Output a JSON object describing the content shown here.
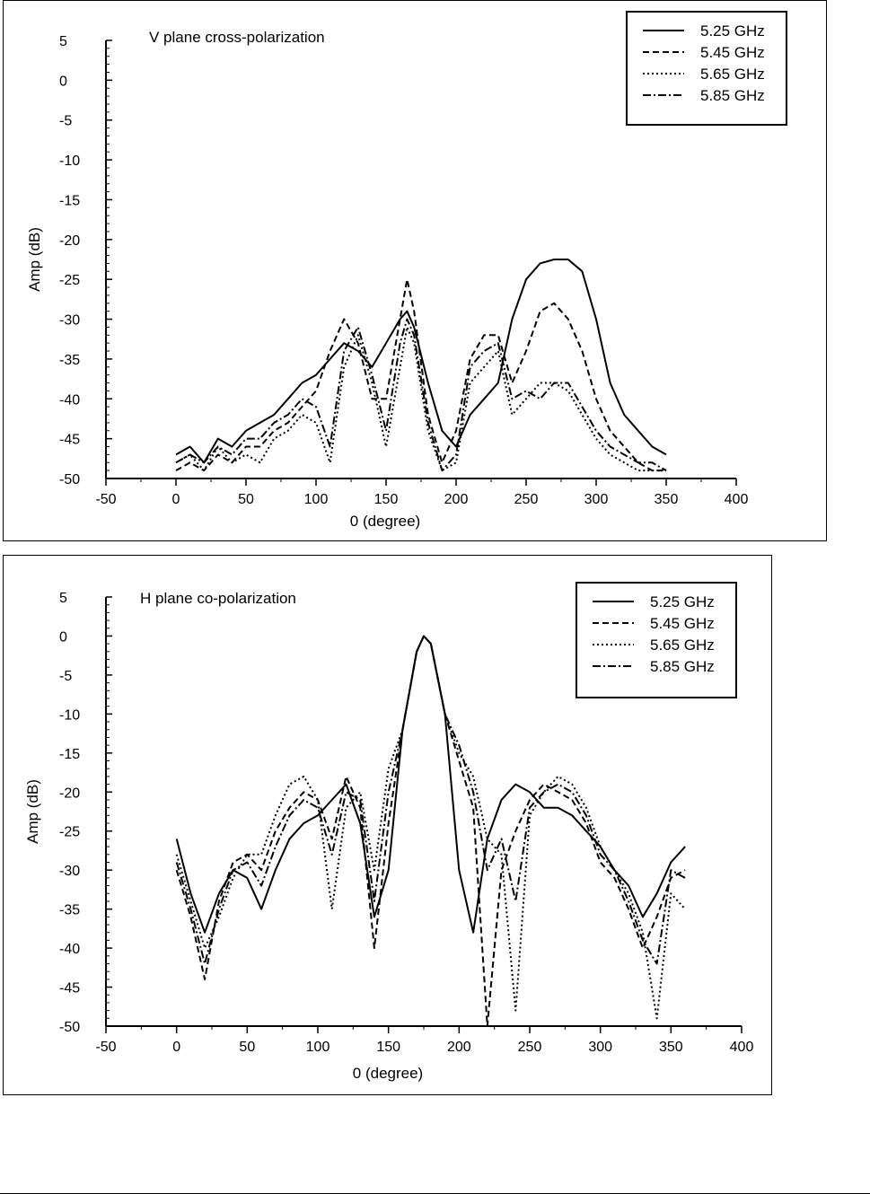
{
  "chart_data": [
    {
      "type": "line",
      "title": "V plane cross-polarization",
      "xlabel": "0 (degree)",
      "ylabel": "Amp (dB)",
      "xlim": [
        -50,
        400
      ],
      "ylim": [
        -50,
        5
      ],
      "xticks": [
        -50,
        0,
        50,
        100,
        150,
        200,
        250,
        300,
        350,
        400
      ],
      "yticks": [
        5,
        0,
        -5,
        -10,
        -15,
        -20,
        -25,
        -30,
        -35,
        -40,
        -45,
        -50
      ],
      "legend": "top-right",
      "grid": false,
      "series": [
        {
          "name": "5.25 GHz",
          "dash": "solid",
          "x": [
            0,
            10,
            20,
            30,
            40,
            50,
            60,
            70,
            80,
            90,
            100,
            110,
            120,
            130,
            140,
            150,
            160,
            165,
            170,
            180,
            190,
            200,
            210,
            220,
            230,
            240,
            250,
            260,
            270,
            280,
            290,
            300,
            310,
            320,
            330,
            340,
            350
          ],
          "y": [
            -47,
            -46,
            -48,
            -45,
            -46,
            -44,
            -43,
            -42,
            -40,
            -38,
            -37,
            -35,
            -33,
            -34,
            -36,
            -33,
            -30,
            -29,
            -31,
            -38,
            -44,
            -46,
            -42,
            -40,
            -38,
            -30,
            -25,
            -23,
            -22.5,
            -22.5,
            -24,
            -30,
            -38,
            -42,
            -44,
            -46,
            -47
          ]
        },
        {
          "name": "5.45 GHz",
          "dash": "dashed",
          "x": [
            0,
            10,
            20,
            30,
            40,
            50,
            60,
            70,
            80,
            90,
            100,
            110,
            120,
            130,
            140,
            150,
            160,
            165,
            170,
            180,
            190,
            200,
            210,
            220,
            230,
            240,
            250,
            260,
            270,
            280,
            290,
            300,
            310,
            320,
            330,
            340,
            350
          ],
          "y": [
            -49,
            -48,
            -49,
            -47,
            -48,
            -46,
            -46,
            -44,
            -43,
            -41,
            -39,
            -34,
            -30,
            -33,
            -40,
            -40,
            -30,
            -25,
            -29,
            -42,
            -48,
            -44,
            -35,
            -32,
            -32,
            -38,
            -34,
            -29,
            -28,
            -30,
            -34,
            -40,
            -44,
            -46,
            -48,
            -49,
            -49
          ]
        },
        {
          "name": "5.65 GHz",
          "dash": "dotted",
          "x": [
            0,
            10,
            20,
            30,
            40,
            50,
            60,
            70,
            80,
            90,
            100,
            110,
            120,
            130,
            140,
            150,
            160,
            165,
            170,
            180,
            190,
            200,
            210,
            220,
            230,
            240,
            250,
            260,
            270,
            280,
            290,
            300,
            310,
            320,
            330,
            340,
            350
          ],
          "y": [
            -48,
            -47,
            -49,
            -46,
            -48,
            -47,
            -48,
            -45,
            -44,
            -42,
            -43,
            -48,
            -36,
            -32,
            -38,
            -46,
            -36,
            -31,
            -33,
            -44,
            -49,
            -48,
            -38,
            -36,
            -34,
            -42,
            -40,
            -38,
            -38,
            -39,
            -42,
            -45,
            -47,
            -48,
            -49,
            -49,
            -49
          ]
        },
        {
          "name": "5.85 GHz",
          "dash": "dashdot",
          "x": [
            0,
            10,
            20,
            30,
            40,
            50,
            60,
            70,
            80,
            90,
            100,
            110,
            120,
            130,
            140,
            150,
            160,
            165,
            170,
            180,
            190,
            200,
            210,
            220,
            230,
            240,
            250,
            260,
            270,
            280,
            290,
            300,
            310,
            320,
            330,
            340,
            350
          ],
          "y": [
            -48,
            -47,
            -48,
            -46,
            -47,
            -45,
            -45,
            -43,
            -42,
            -40,
            -41,
            -46,
            -34,
            -31,
            -37,
            -44,
            -33,
            -30,
            -32,
            -43,
            -49,
            -47,
            -36,
            -34,
            -33,
            -40,
            -39,
            -40,
            -38,
            -38,
            -41,
            -44,
            -46,
            -47,
            -48,
            -48,
            -49
          ]
        }
      ]
    },
    {
      "type": "line",
      "title": "H plane co-polarization",
      "xlabel": "0 (degree)",
      "ylabel": "Amp (dB)",
      "xlim": [
        -50,
        400
      ],
      "ylim": [
        -50,
        5
      ],
      "xticks": [
        -50,
        0,
        50,
        100,
        150,
        200,
        250,
        300,
        350,
        400
      ],
      "yticks": [
        5,
        0,
        -5,
        -10,
        -15,
        -20,
        -25,
        -30,
        -35,
        -40,
        -45,
        -50
      ],
      "legend": "top-right",
      "grid": false,
      "series": [
        {
          "name": "5.25 GHz",
          "dash": "solid",
          "x": [
            0,
            10,
            20,
            30,
            40,
            50,
            60,
            70,
            80,
            90,
            100,
            110,
            120,
            130,
            140,
            150,
            160,
            170,
            175,
            180,
            190,
            200,
            210,
            220,
            230,
            240,
            250,
            260,
            270,
            280,
            290,
            300,
            310,
            320,
            330,
            340,
            350,
            360
          ],
          "y": [
            -26,
            -33,
            -38,
            -33,
            -30,
            -31,
            -35,
            -30,
            -26,
            -24,
            -23,
            -21,
            -19,
            -24,
            -36,
            -30,
            -12,
            -2,
            0,
            -1,
            -10,
            -30,
            -38,
            -26,
            -21,
            -19,
            -20,
            -22,
            -22,
            -23,
            -25,
            -27,
            -30,
            -32,
            -36,
            -33,
            -29,
            -27
          ]
        },
        {
          "name": "5.45 GHz",
          "dash": "dashed",
          "x": [
            0,
            10,
            20,
            30,
            40,
            50,
            60,
            70,
            80,
            90,
            100,
            110,
            120,
            130,
            140,
            150,
            160,
            170,
            175,
            180,
            190,
            200,
            210,
            220,
            230,
            240,
            250,
            260,
            270,
            280,
            290,
            300,
            310,
            320,
            330,
            340,
            350,
            360
          ],
          "y": [
            -30,
            -36,
            -44,
            -34,
            -29,
            -28,
            -30,
            -25,
            -22,
            -20,
            -21,
            -26,
            -18,
            -22,
            -40,
            -24,
            -12,
            -2,
            0,
            -1,
            -10,
            -16,
            -22,
            -50,
            -30,
            -25,
            -21,
            -19,
            -20,
            -21,
            -24,
            -29,
            -31,
            -35,
            -40,
            -36,
            -31,
            -30
          ]
        },
        {
          "name": "5.65 GHz",
          "dash": "dotted",
          "x": [
            0,
            10,
            20,
            30,
            40,
            50,
            60,
            70,
            80,
            90,
            100,
            110,
            120,
            130,
            140,
            150,
            160,
            170,
            175,
            180,
            190,
            200,
            210,
            220,
            230,
            240,
            250,
            260,
            270,
            280,
            290,
            300,
            310,
            320,
            330,
            340,
            350,
            360
          ],
          "y": [
            -28,
            -34,
            -40,
            -36,
            -31,
            -28,
            -28,
            -23,
            -19,
            -18,
            -21,
            -35,
            -22,
            -20,
            -30,
            -17,
            -12,
            -2,
            0,
            -1,
            -10,
            -15,
            -18,
            -26,
            -28,
            -48,
            -23,
            -20,
            -18,
            -19,
            -22,
            -27,
            -30,
            -33,
            -38,
            -49,
            -33,
            -35
          ]
        },
        {
          "name": "5.85 GHz",
          "dash": "dashdot",
          "x": [
            0,
            10,
            20,
            30,
            40,
            50,
            60,
            70,
            80,
            90,
            100,
            110,
            120,
            130,
            140,
            150,
            160,
            170,
            175,
            180,
            190,
            200,
            210,
            220,
            230,
            240,
            250,
            260,
            270,
            280,
            290,
            300,
            310,
            320,
            330,
            340,
            350,
            360
          ],
          "y": [
            -29,
            -35,
            -42,
            -35,
            -30,
            -29,
            -32,
            -27,
            -23,
            -21,
            -22,
            -28,
            -20,
            -21,
            -34,
            -20,
            -12,
            -2,
            0,
            -1,
            -10,
            -14,
            -20,
            -30,
            -26,
            -34,
            -22,
            -20,
            -19,
            -20,
            -23,
            -28,
            -30,
            -34,
            -39,
            -42,
            -30,
            -31
          ]
        }
      ]
    }
  ]
}
